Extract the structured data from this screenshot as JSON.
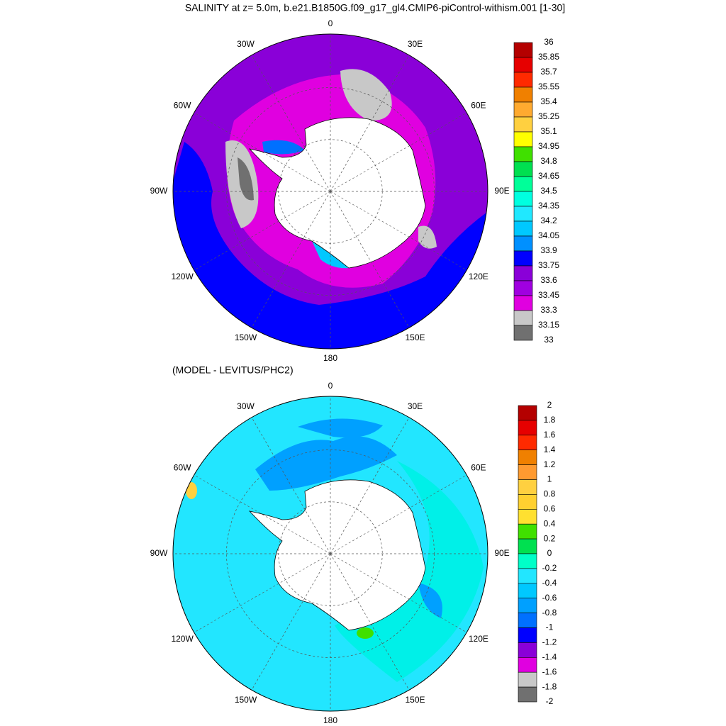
{
  "chart_data": [
    {
      "type": "polar-contour-map",
      "title": "SALINITY at z=   5.0m, b.e21.B1850G.f09_g17_gl4.CMIP6-piControl-withism.001 [1-30]",
      "lon_labels": [
        "0",
        "30E",
        "60E",
        "90E",
        "120E",
        "150E",
        "180",
        "150W",
        "120W",
        "90W",
        "60W",
        "30W"
      ],
      "levels": [
        36,
        35.85,
        35.7,
        35.55,
        35.4,
        35.25,
        35.1,
        34.95,
        34.8,
        34.65,
        34.5,
        34.35,
        34.2,
        34.05,
        33.9,
        33.75,
        33.6,
        33.45,
        33.3,
        33.15,
        33
      ],
      "colors": [
        "#b40000",
        "#e60000",
        "#ff2a00",
        "#f08000",
        "#ffaa30",
        "#ffd040",
        "#ffff00",
        "#40e000",
        "#00e050",
        "#00ff99",
        "#00ffe0",
        "#20e8ff",
        "#00c8ff",
        "#0090ff",
        "#0000ff",
        "#8a00d8",
        "#a000e0",
        "#e000e0",
        "#c8c8c8",
        "#707070"
      ]
    },
    {
      "type": "polar-contour-map",
      "title": "(MODEL - LEVITUS/PHC2)",
      "lon_labels": [
        "0",
        "30E",
        "60E",
        "90E",
        "120E",
        "150E",
        "180",
        "150W",
        "120W",
        "90W",
        "60W",
        "30W"
      ],
      "levels": [
        2,
        1.8,
        1.6,
        1.4,
        1.2,
        1,
        0.8,
        0.6,
        0.4,
        0.2,
        0,
        -0.2,
        -0.4,
        -0.6,
        -0.8,
        -1,
        -1.2,
        -1.4,
        -1.6,
        -1.8,
        -2
      ],
      "colors": [
        "#b40000",
        "#e60000",
        "#ff2a00",
        "#f08000",
        "#ff9a30",
        "#ffd040",
        "#ffd030",
        "#ffe030",
        "#40e000",
        "#00e050",
        "#00ffc8",
        "#22e6ff",
        "#00c8ff",
        "#00a0ff",
        "#0070ff",
        "#0000ff",
        "#8a00d8",
        "#e000e0",
        "#c8c8c8",
        "#707070"
      ]
    }
  ]
}
